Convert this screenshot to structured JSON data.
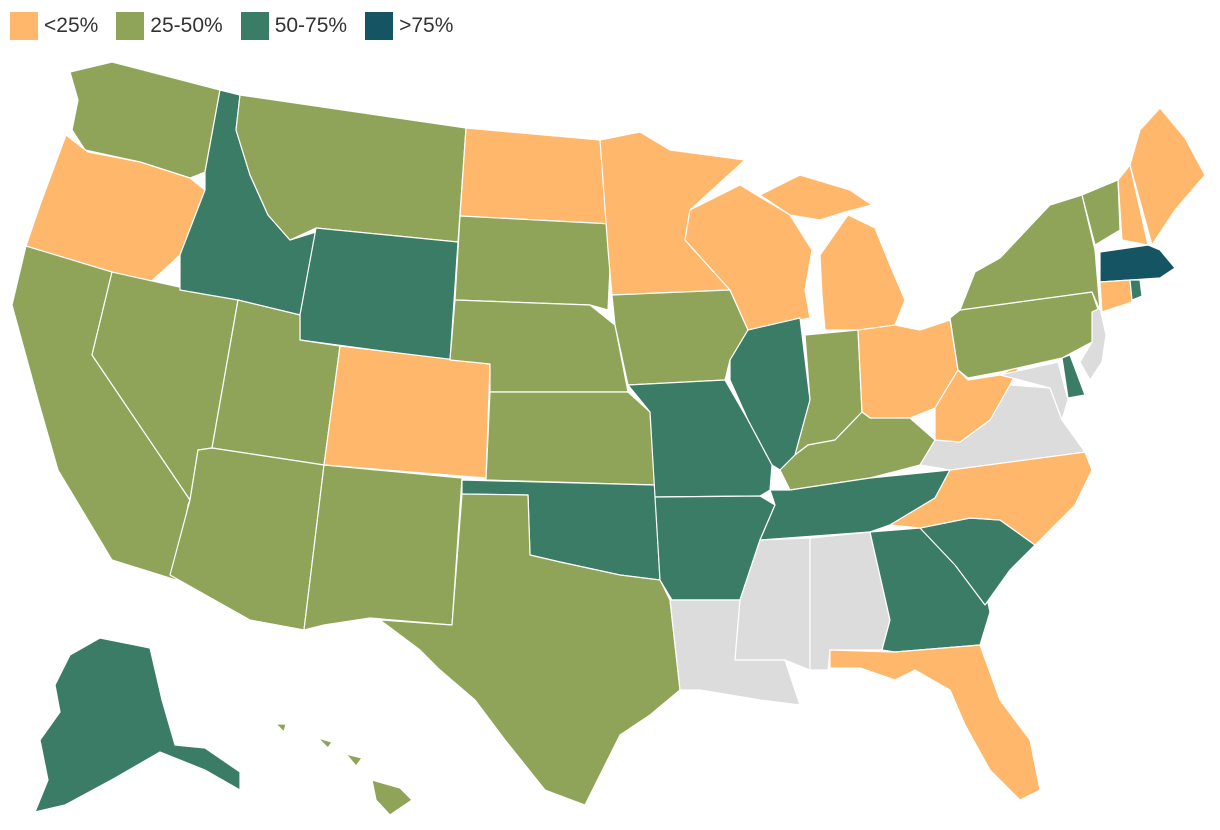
{
  "colors": {
    "lt25": "#ffb76b",
    "25to50": "#8fa458",
    "50to75": "#3a7c66",
    "gt75": "#155563",
    "nodata": "#dcdcdc"
  },
  "legend": [
    {
      "key": "lt25",
      "label": "<25%"
    },
    {
      "key": "25to50",
      "label": "25-50%"
    },
    {
      "key": "50to75",
      "label": "50-75%"
    },
    {
      "key": "gt75",
      "label": ">75%"
    }
  ],
  "states": {
    "WA": "25to50",
    "OR": "lt25",
    "CA": "25to50",
    "NV": "25to50",
    "ID": "50to75",
    "MT": "25to50",
    "WY": "50to75",
    "UT": "25to50",
    "AZ": "25to50",
    "CO": "lt25",
    "NM": "25to50",
    "ND": "lt25",
    "SD": "25to50",
    "NE": "25to50",
    "KS": "25to50",
    "OK": "50to75",
    "TX": "25to50",
    "MN": "lt25",
    "IA": "25to50",
    "MO": "50to75",
    "AR": "50to75",
    "LA": "nodata",
    "WI": "lt25",
    "IL": "50to75",
    "MI": "lt25",
    "IN": "25to50",
    "OH": "lt25",
    "KY": "25to50",
    "TN": "50to75",
    "MS": "nodata",
    "AL": "nodata",
    "GA": "50to75",
    "FL": "lt25",
    "SC": "50to75",
    "NC": "lt25",
    "VA": "nodata",
    "WV": "lt25",
    "MD": "nodata",
    "DE": "50to75",
    "NJ": "nodata",
    "PA": "25to50",
    "NY": "25to50",
    "CT": "lt25",
    "RI": "50to75",
    "MA": "gt75",
    "VT": "25to50",
    "NH": "lt25",
    "ME": "lt25",
    "AK": "50to75",
    "HI": "25to50"
  }
}
